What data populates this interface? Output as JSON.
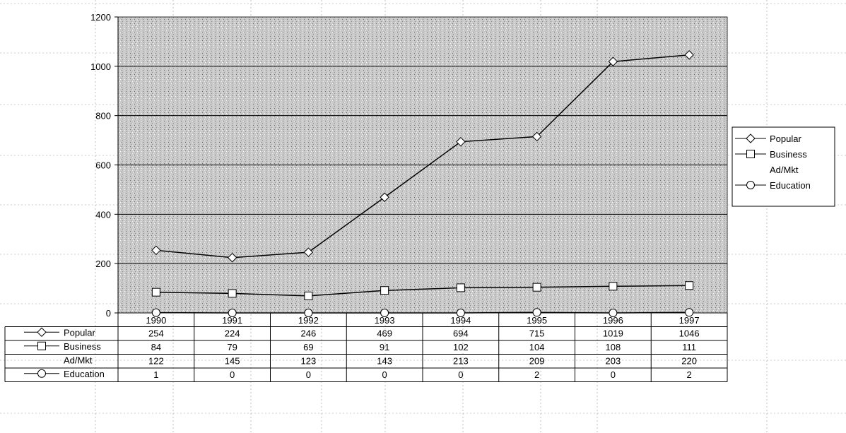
{
  "chart_data": {
    "type": "line",
    "title": "",
    "xlabel": "",
    "ylabel": "",
    "categories": [
      "1990",
      "1991",
      "1992",
      "1993",
      "1994",
      "1995",
      "1996",
      "1997"
    ],
    "ylim": [
      0,
      1200
    ],
    "yticks": [
      "0",
      "200",
      "400",
      "600",
      "800",
      "1000",
      "1200"
    ],
    "grid": "horizontal",
    "legend_position": "right",
    "series": [
      {
        "name": "Popular",
        "marker": "diamond",
        "plotted": true,
        "values": [
          254,
          224,
          246,
          469,
          694,
          715,
          1019,
          1046
        ],
        "labels": [
          "254",
          "224",
          "246",
          "469",
          "694",
          "715",
          "1019",
          "1046"
        ]
      },
      {
        "name": "Business",
        "marker": "square",
        "plotted": true,
        "values": [
          84,
          79,
          69,
          91,
          102,
          104,
          108,
          111
        ],
        "labels": [
          "84",
          "79",
          "69",
          "91",
          "102",
          "104",
          "108",
          "111"
        ]
      },
      {
        "name": "Ad/Mkt",
        "marker": "none",
        "plotted": false,
        "values": [
          122,
          145,
          123,
          143,
          213,
          209,
          203,
          220
        ],
        "labels": [
          "122",
          "145",
          "123",
          "143",
          "213",
          "209",
          "203",
          "220"
        ]
      },
      {
        "name": "Education",
        "marker": "circle",
        "plotted": true,
        "values": [
          1,
          0,
          0,
          0,
          0,
          2,
          0,
          2
        ],
        "labels": [
          "1",
          "0",
          "0",
          "0",
          "0",
          "2",
          "0",
          "2"
        ]
      }
    ]
  },
  "colors": {
    "plot_background": "#c6c6c6",
    "line": "#000000",
    "marker_fill": "#ffffff",
    "gridline": "#000000"
  }
}
